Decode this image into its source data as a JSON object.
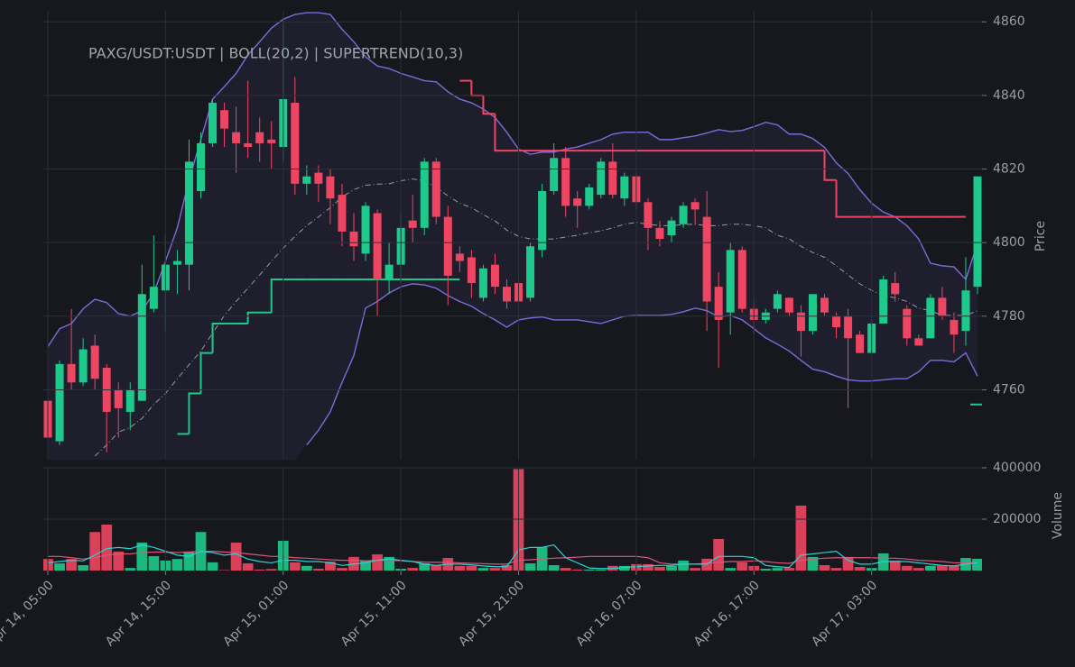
{
  "chart_data": {
    "type": "candlestick",
    "title": "PAXG/USDT:USDT | BOLL(20,2) | SUPERTREND(10,3)",
    "ylabel": "Price",
    "grid": true,
    "up_color": "#1ec98c",
    "down_color": "#ee4662",
    "ylim": [
      4741,
      4863
    ],
    "yticks": [
      4760,
      4780,
      4800,
      4820,
      4840,
      4860
    ],
    "categories": [
      "Apr 14, 05:00",
      null,
      null,
      null,
      null,
      null,
      null,
      null,
      null,
      null,
      "Apr 14, 15:00",
      null,
      null,
      null,
      null,
      null,
      null,
      null,
      null,
      null,
      "Apr 15, 01:00",
      null,
      null,
      null,
      null,
      null,
      null,
      null,
      null,
      null,
      "Apr 15, 11:00",
      null,
      null,
      null,
      null,
      null,
      null,
      null,
      null,
      null,
      "Apr 15, 21:00",
      null,
      null,
      null,
      null,
      null,
      null,
      null,
      null,
      null,
      "Apr 16, 07:00",
      null,
      null,
      null,
      null,
      null,
      null,
      null,
      null,
      null,
      "Apr 16, 17:00",
      null,
      null,
      null,
      null,
      null,
      null,
      null,
      null,
      null,
      "Apr 17, 03:00",
      null,
      null,
      null,
      null,
      null,
      null,
      null,
      null,
      null
    ],
    "open": [
      4757,
      4746,
      4767,
      4762,
      4772,
      4766,
      4760,
      4754,
      4757,
      4782,
      4787,
      4794,
      4794,
      4814,
      4827,
      4836,
      4830,
      4827,
      4830,
      4828,
      4826,
      4838,
      4816,
      4819,
      4818,
      4813,
      4803,
      4797,
      4808,
      4790,
      4794,
      4806,
      4804,
      4822,
      4807,
      4797,
      4796,
      4785,
      4794,
      4788,
      4789,
      4785,
      4798,
      4814,
      4823,
      4812,
      4810,
      4813,
      4822,
      4812,
      4818,
      4811,
      4804,
      4802,
      4805,
      4811,
      4807,
      4788,
      4781,
      4798,
      4782,
      4779,
      4782,
      4785,
      4781,
      4776,
      4785,
      4780,
      4780,
      4775,
      4770,
      4778,
      4789,
      4782,
      4774,
      4774,
      4785,
      4779,
      4776,
      4788
    ],
    "high": [
      4758,
      4768,
      4782,
      4774,
      4775,
      4767,
      4762,
      4762,
      4794,
      4802,
      4802,
      4798,
      4828,
      4830,
      4839,
      4838,
      4837,
      4844,
      4834,
      4833,
      4861,
      4845,
      4821,
      4821,
      4820,
      4816,
      4808,
      4811,
      4809,
      4800,
      4808,
      4813,
      4823,
      4823,
      4810,
      4799,
      4798,
      4794,
      4797,
      4790,
      4793,
      4800,
      4816,
      4827,
      4826,
      4814,
      4816,
      4823,
      4827,
      4819,
      4819,
      4812,
      4806,
      4807,
      4811,
      4812,
      4814,
      4792,
      4800,
      4799,
      4784,
      4782,
      4787,
      4785,
      4783,
      4786,
      4786,
      4781,
      4782,
      4776,
      4779,
      4791,
      4792,
      4783,
      4775,
      4786,
      4788,
      4781,
      4796,
      4818
    ],
    "low": [
      4743,
      4745,
      4760,
      4761,
      4760,
      4743,
      4747,
      4749,
      4757,
      4781,
      4776,
      4786,
      4787,
      4812,
      4826,
      4826,
      4819,
      4823,
      4822,
      4820,
      4822,
      4813,
      4813,
      4811,
      4805,
      4799,
      4795,
      4795,
      4780,
      4786,
      4789,
      4800,
      4802,
      4805,
      4783,
      4792,
      4785,
      4784,
      4786,
      4782,
      4783,
      4784,
      4796,
      4813,
      4807,
      4804,
      4809,
      4812,
      4812,
      4810,
      4809,
      4798,
      4799,
      4800,
      4804,
      4805,
      4776,
      4766,
      4775,
      4781,
      4775,
      4778,
      4781,
      4780,
      4769,
      4775,
      4780,
      4774,
      4755,
      4770,
      4770,
      4778,
      4784,
      4772,
      4772,
      4774,
      4779,
      4770,
      4772,
      4786
    ],
    "close": [
      4747,
      4767,
      4762,
      4771,
      4763,
      4754,
      4755,
      4760,
      4786,
      4788,
      4794,
      4795,
      4822,
      4827,
      4838,
      4831,
      4827,
      4826,
      4827,
      4827,
      4839,
      4816,
      4818,
      4816,
      4812,
      4803,
      4799,
      4810,
      4790,
      4794,
      4804,
      4804,
      4822,
      4807,
      4791,
      4795,
      4789,
      4793,
      4788,
      4784,
      4784,
      4799,
      4814,
      4823,
      4810,
      4810,
      4815,
      4822,
      4813,
      4818,
      4811,
      4804,
      4801,
      4806,
      4810,
      4809,
      4784,
      4779,
      4798,
      4782,
      4779,
      4781,
      4786,
      4781,
      4776,
      4786,
      4781,
      4777,
      4774,
      4770,
      4778,
      4790,
      4786,
      4774,
      4772,
      4785,
      4780,
      4775,
      4787,
      4818
    ],
    "bollinger": {
      "color": "#7b6cd9",
      "middle_color": "#9a9aa2",
      "upper": [
        4771.7,
        4776.6,
        4778,
        4782,
        4784.6,
        4783.7,
        4780.7,
        4780,
        4781.5,
        4786.3,
        4795,
        4804,
        4817,
        4828,
        4839,
        4842.4,
        4846,
        4851,
        4854.6,
        4858.3,
        4860.7,
        4862,
        4862.5,
        4862.5,
        4862,
        4858,
        4854.6,
        4850.5,
        4848,
        4847.3,
        4846,
        4845,
        4844,
        4843.7,
        4841,
        4839,
        4838,
        4836.3,
        4834,
        4830,
        4825.4,
        4824,
        4824.6,
        4824.6,
        4825.4,
        4826,
        4827,
        4828,
        4829.5,
        4830,
        4830,
        4830,
        4828,
        4828,
        4828.5,
        4829,
        4829.8,
        4830.7,
        4830.2,
        4830.5,
        4831.5,
        4832.7,
        4832,
        4829.5,
        4829.5,
        4828.3,
        4825.9,
        4821.7,
        4818.8,
        4814.4,
        4810.7,
        4808.3,
        4807,
        4804.6,
        4801,
        4794.4,
        4793.7,
        4793.4,
        4790,
        4799.8
      ],
      "middle": [
        null,
        null,
        null,
        null,
        4742,
        4745,
        4748.5,
        4749.8,
        4752.2,
        4756,
        4759,
        4763,
        4766.8,
        4770.5,
        4775.4,
        4780.2,
        4784,
        4787.6,
        4791.2,
        4794.9,
        4798.5,
        4801.7,
        4804.6,
        4807,
        4809.5,
        4812.4,
        4814.4,
        4815.6,
        4815.9,
        4816,
        4816.8,
        4817.3,
        4816.8,
        4815,
        4812.7,
        4810.7,
        4809.5,
        4807.6,
        4805.9,
        4803.4,
        4801.7,
        4801,
        4801,
        4801,
        4801.5,
        4802,
        4802.7,
        4803.2,
        4804,
        4805,
        4805.5,
        4805,
        4804.6,
        4804.6,
        4804.9,
        4805,
        4804.6,
        4804.6,
        4805,
        4805,
        4804.6,
        4804,
        4802,
        4801,
        4799,
        4797.3,
        4796,
        4793.7,
        4791.2,
        4788.8,
        4787,
        4785.6,
        4785,
        4784,
        4782.2,
        4781.5,
        4780.2,
        4780.2,
        4780.2,
        4781.5
      ],
      "lower": [
        null,
        null,
        null,
        null,
        null,
        null,
        null,
        null,
        null,
        null,
        null,
        null,
        null,
        null,
        null,
        null,
        null,
        null,
        null,
        null,
        null,
        null,
        4745,
        4749,
        4754,
        4762,
        4769.3,
        4782.2,
        4784,
        4786.3,
        4788,
        4788.8,
        4788.5,
        4787.6,
        4785.6,
        4784,
        4782.7,
        4780.7,
        4779,
        4777,
        4779,
        4779.5,
        4779.8,
        4779,
        4779,
        4779,
        4778.5,
        4778,
        4779,
        4780,
        4780.2,
        4780.2,
        4780.2,
        4780.5,
        4781.2,
        4782.2,
        4781.5,
        4779.8,
        4780.2,
        4779,
        4776.6,
        4774.1,
        4772.4,
        4770.5,
        4768,
        4765.6,
        4764.9,
        4763.7,
        4762.7,
        4762.4,
        4762.4,
        4762.7,
        4763,
        4763,
        4764.9,
        4768,
        4768,
        4767.6,
        4770,
        4763.7
      ]
    },
    "supertrend": {
      "up_color": "#1ec98c",
      "down_color": "#ee4662",
      "up": [
        null,
        null,
        null,
        null,
        null,
        null,
        null,
        null,
        null,
        null,
        null,
        4748,
        4759,
        4770,
        4778,
        4778,
        4778,
        4781,
        4781,
        4790,
        4790,
        4790,
        4790,
        4790,
        4790,
        4790,
        4790,
        4790,
        4790,
        4790,
        4790,
        4790,
        4790,
        4790,
        4790,
        4790,
        null,
        null,
        null,
        null,
        null,
        null,
        null,
        null,
        null,
        null,
        null,
        null,
        null,
        null,
        null,
        null,
        null,
        null,
        null,
        null,
        null,
        null,
        null,
        null,
        null,
        null,
        null,
        null,
        null,
        null,
        null,
        null,
        null,
        null,
        null,
        null,
        null,
        null,
        null,
        null,
        null,
        null,
        null,
        4756
      ],
      "down": [
        null,
        null,
        null,
        null,
        null,
        null,
        null,
        null,
        null,
        null,
        null,
        null,
        null,
        null,
        null,
        null,
        null,
        null,
        null,
        null,
        null,
        null,
        null,
        null,
        null,
        null,
        null,
        null,
        null,
        null,
        null,
        null,
        null,
        null,
        null,
        4844,
        4840,
        4835,
        4825,
        4825,
        4825,
        4825,
        4825,
        4825,
        4825,
        4825,
        4825,
        4825,
        4825,
        4825,
        4825,
        4825,
        4825,
        4825,
        4825,
        4825,
        4825,
        4825,
        4825,
        4825,
        4825,
        4825,
        4825,
        4825,
        4825,
        4825,
        4817,
        4807,
        4807,
        4807,
        4807,
        4807,
        4807,
        4807,
        4807,
        4807,
        4807,
        4807,
        4807,
        null
      ]
    },
    "volume": {
      "ylabel": "Volume",
      "ylim": [
        0,
        400000
      ],
      "yticks": [
        200000,
        400000
      ],
      "values": [
        45000,
        28000,
        45000,
        21000,
        150000,
        179000,
        74000,
        10000,
        109000,
        56000,
        39000,
        45000,
        74000,
        150000,
        32000,
        2000,
        109000,
        28000,
        4000,
        6000,
        116000,
        32000,
        18000,
        7000,
        35000,
        10000,
        53000,
        39000,
        63000,
        53000,
        7000,
        10000,
        28000,
        21000,
        49000,
        18000,
        18000,
        10000,
        10000,
        21000,
        395000,
        28000,
        91000,
        21000,
        10000,
        4000,
        4000,
        4000,
        18000,
        18000,
        25000,
        25000,
        14000,
        18000,
        39000,
        10000,
        46000,
        123000,
        10000,
        32000,
        18000,
        7000,
        10000,
        10000,
        253000,
        53000,
        21000,
        10000,
        53000,
        14000,
        10000,
        67000,
        39000,
        18000,
        10000,
        18000,
        21000,
        18000,
        49000,
        46000
      ],
      "ma_fast": {
        "color": "#2ad4d4",
        "values": [
          30000,
          35000,
          40000,
          38000,
          60000,
          85000,
          90000,
          85000,
          100000,
          90000,
          75000,
          60000,
          55000,
          75000,
          70000,
          60000,
          65000,
          45000,
          35000,
          30000,
          40000,
          40000,
          35000,
          35000,
          30000,
          20000,
          25000,
          30000,
          40000,
          45000,
          40000,
          35000,
          25000,
          20000,
          25000,
          25000,
          22000,
          18000,
          15000,
          15000,
          80000,
          90000,
          90000,
          100000,
          50000,
          30000,
          10000,
          8000,
          8000,
          12000,
          15000,
          18000,
          20000,
          20000,
          25000,
          25000,
          25000,
          55000,
          55000,
          55000,
          50000,
          20000,
          15000,
          12000,
          60000,
          65000,
          70000,
          75000,
          40000,
          25000,
          25000,
          35000,
          35000,
          35000,
          30000,
          25000,
          20000,
          18000,
          25000,
          30000
        ]
      },
      "ma_slow": {
        "color": "#d9587a",
        "values": [
          55000,
          55000,
          50000,
          45000,
          50000,
          60000,
          65000,
          65000,
          70000,
          72000,
          72000,
          70000,
          72000,
          75000,
          75000,
          72000,
          70000,
          65000,
          60000,
          55000,
          55000,
          50000,
          48000,
          45000,
          42000,
          40000,
          40000,
          38000,
          40000,
          40000,
          38000,
          35000,
          33000,
          32000,
          32000,
          30000,
          28000,
          27000,
          25000,
          25000,
          40000,
          42000,
          45000,
          48000,
          50000,
          52000,
          55000,
          55000,
          55000,
          55000,
          55000,
          50000,
          30000,
          25000,
          25000,
          25000,
          28000,
          32000,
          35000,
          35000,
          38000,
          35000,
          30000,
          28000,
          40000,
          45000,
          48000,
          50000,
          50000,
          50000,
          50000,
          48000,
          48000,
          45000,
          40000,
          38000,
          35000,
          30000,
          30000,
          32000
        ]
      }
    }
  }
}
